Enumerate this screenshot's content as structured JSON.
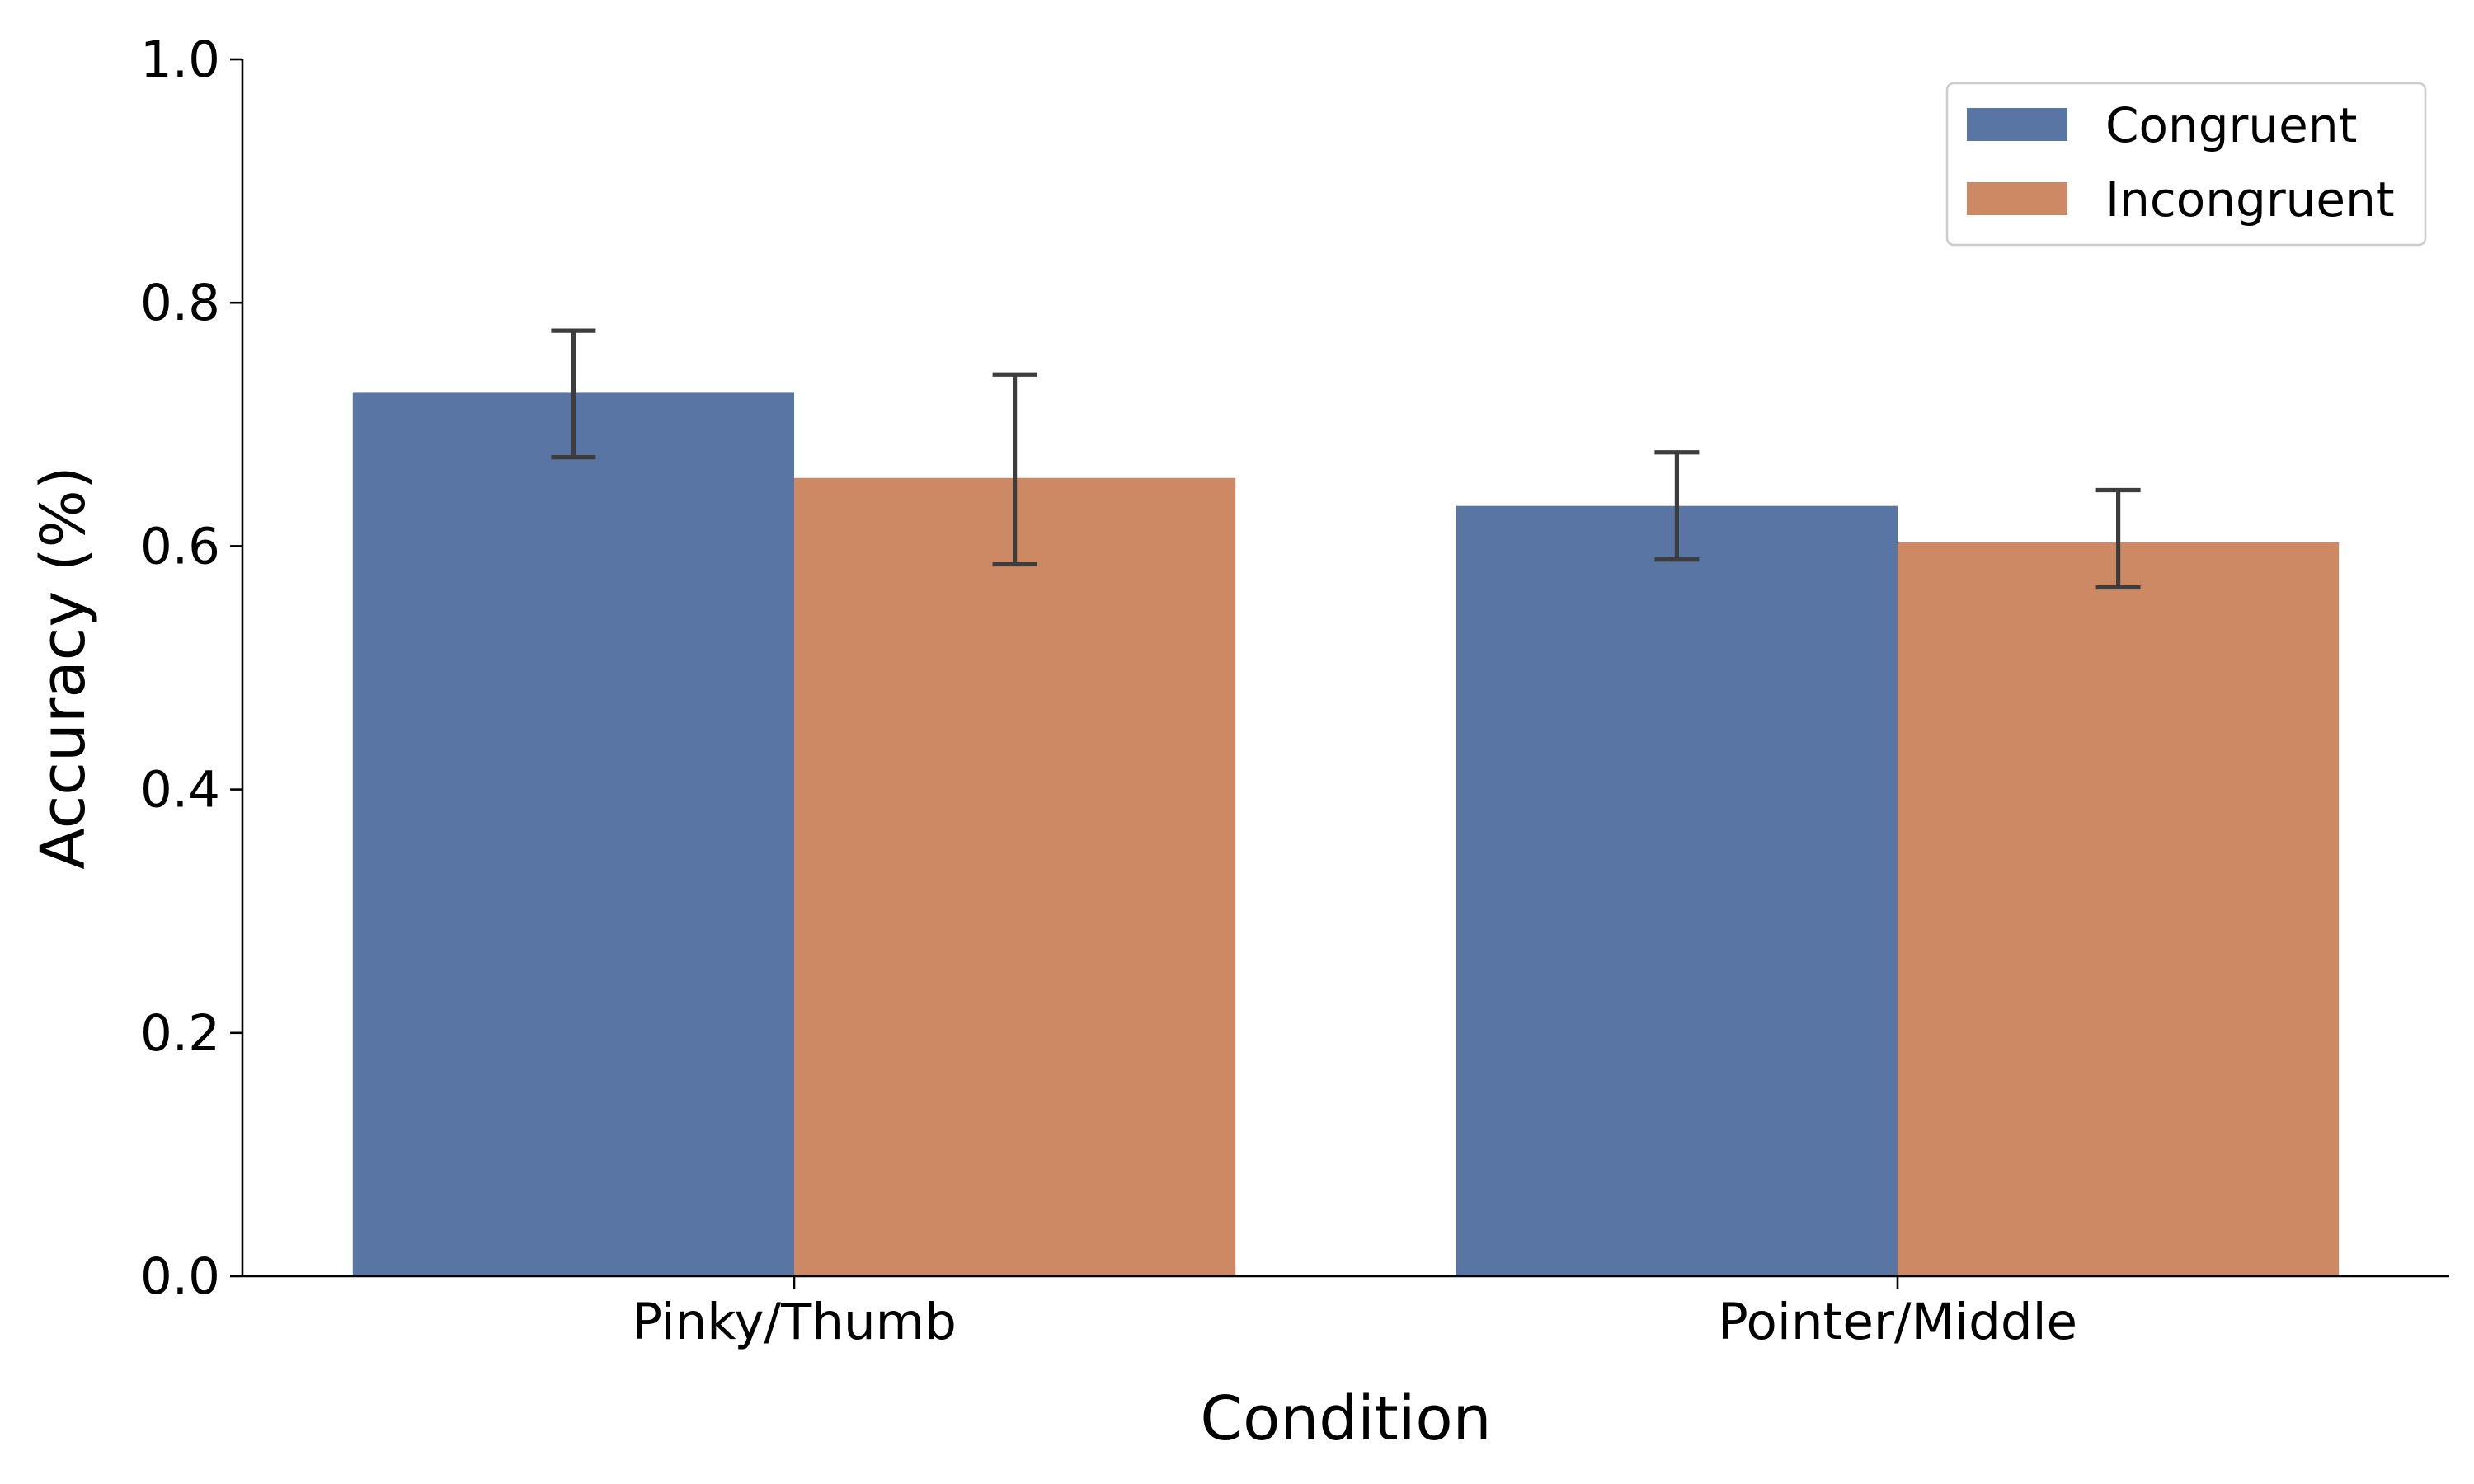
{
  "chart_data": {
    "type": "bar",
    "xlabel": "Condition",
    "ylabel": "Accuracy (%)",
    "categories": [
      "Pinky/Thumb",
      "Pointer/Middle"
    ],
    "series": [
      {
        "name": "Congruent",
        "color": "#5975a4",
        "values": [
          0.726,
          0.633
        ],
        "error_low": [
          0.673,
          0.589
        ],
        "error_high": [
          0.777,
          0.677
        ]
      },
      {
        "name": "Incongruent",
        "color": "#cc8963",
        "values": [
          0.656,
          0.603
        ],
        "error_low": [
          0.585,
          0.566
        ],
        "error_high": [
          0.741,
          0.646
        ]
      }
    ],
    "ylim": [
      0,
      1.0
    ],
    "yticks": [
      "0.0",
      "0.2",
      "0.4",
      "0.6",
      "0.8",
      "1.0"
    ],
    "grid": false,
    "legend_position": "top-right"
  }
}
